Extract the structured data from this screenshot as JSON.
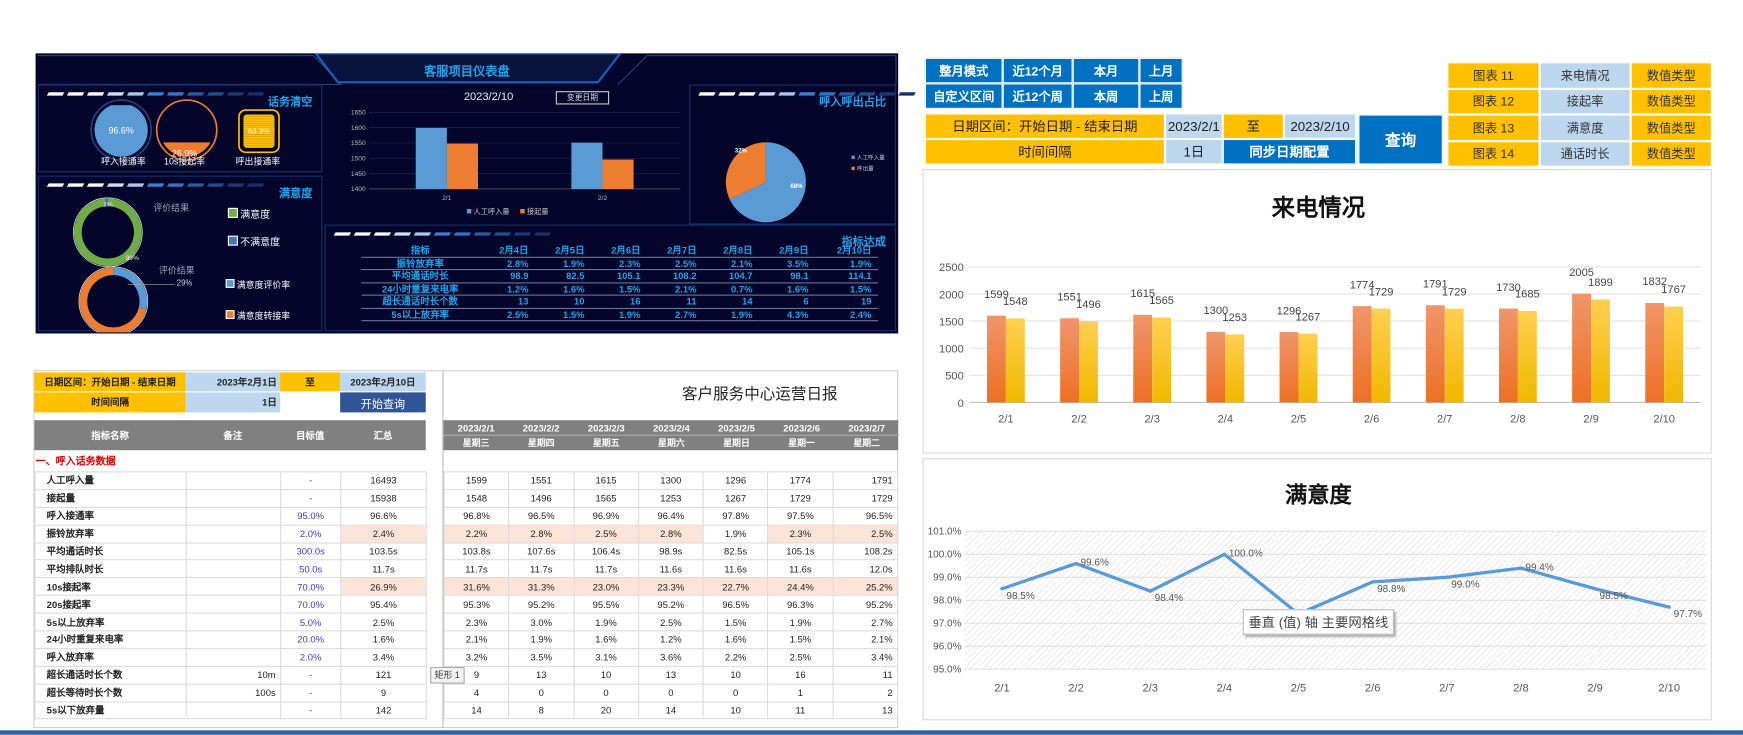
{
  "dashboard": {
    "title": "客服项目仪表盘",
    "panel_traffic": {
      "title": "话务清空",
      "gauges": [
        {
          "label": "呼入接通率",
          "value_text": "96.6%",
          "level": 96.6,
          "color": "#5b9bd5"
        },
        {
          "label": "10s接起率",
          "value_text": "26.9%",
          "level": 26.9,
          "color": "#ed7d31"
        },
        {
          "label": "呼出接通率",
          "value_text": "63.3%",
          "level": 63.3,
          "color": "#ffc000"
        }
      ]
    },
    "panel_satisfaction": {
      "title": "满意度",
      "donut1": {
        "caption": "评价结果",
        "small_label": "1%",
        "big_label": "99%",
        "values": [
          99,
          1
        ],
        "legend": [
          "满意度",
          "不满意度"
        ],
        "colors": [
          "#70ad47",
          "#4472c4"
        ]
      },
      "donut2": {
        "caption": "评价结果",
        "label": "29%",
        "values": [
          29,
          71
        ],
        "legend": [
          "满意度评价率",
          "满意度转接率"
        ],
        "colors": [
          "#5b9bd5",
          "#ed7d31"
        ]
      }
    },
    "center_chart": {
      "date": "2023/2/10",
      "change_date_button": "变更日期"
    },
    "panel_ratio": {
      "title": "呼入呼出占比"
    },
    "panel_kpi": {
      "title": "指标达成",
      "header": [
        "指标",
        "2月4日",
        "2月5日",
        "2月6日",
        "2月7日",
        "2月8日",
        "2月9日",
        "2月10日"
      ],
      "rows": [
        [
          "振铃放弃率",
          "2.8%",
          "1.9%",
          "2.3%",
          "2.5%",
          "2.1%",
          "3.5%",
          "1.9%"
        ],
        [
          "平均通话时长",
          "98.9",
          "82.5",
          "105.1",
          "108.2",
          "104.7",
          "98.1",
          "114.1"
        ],
        [
          "24小时重复来电率",
          "1.2%",
          "1.6%",
          "1.5%",
          "2.1%",
          "0.7%",
          "1.6%",
          "1.5%"
        ],
        [
          "超长通话时长个数",
          "13",
          "10",
          "16",
          "11",
          "14",
          "6",
          "19"
        ],
        [
          "5s以上放弃率",
          "2.5%",
          "1.5%",
          "1.9%",
          "2.7%",
          "1.9%",
          "4.3%",
          "2.4%"
        ]
      ]
    }
  },
  "report": {
    "date_range_label": "日期区间：开始日期 - 结束日期",
    "start_date": "2023年2月1日",
    "to_label": "至",
    "end_date": "2023年2月10日",
    "interval_label": "时间间隔",
    "interval_value": "1日",
    "query_button": "开始查询",
    "title": "客户服务中心运营日报",
    "columns": [
      "指标名称",
      "备注",
      "目标值",
      "汇总"
    ],
    "dates": [
      "2023/2/1",
      "2023/2/2",
      "2023/2/3",
      "2023/2/4",
      "2023/2/5",
      "2023/2/6",
      "2023/2/7"
    ],
    "weekdays": [
      "星期三",
      "星期四",
      "星期五",
      "星期六",
      "星期日",
      "星期一",
      "星期二"
    ],
    "section": "一、呼入话务数据",
    "shape_label": "矩形 1",
    "rows": [
      {
        "name": "人工呼入量",
        "note": "",
        "target": "-",
        "total": "16493",
        "days": [
          "1599",
          "1551",
          "1615",
          "1300",
          "1296",
          "1774",
          "1791"
        ],
        "hl": []
      },
      {
        "name": "接起量",
        "note": "",
        "target": "-",
        "total": "15938",
        "days": [
          "1548",
          "1496",
          "1565",
          "1253",
          "1267",
          "1729",
          "1729"
        ],
        "hl": []
      },
      {
        "name": "呼入接通率",
        "note": "",
        "target": "95.0%",
        "total": "96.6%",
        "days": [
          "96.8%",
          "96.5%",
          "96.9%",
          "96.4%",
          "97.8%",
          "97.5%",
          "96.5%"
        ],
        "hl": []
      },
      {
        "name": "振铃放弃率",
        "note": "",
        "target": "2.0%",
        "total": "2.4%",
        "days": [
          "2.2%",
          "2.8%",
          "2.5%",
          "2.8%",
          "1.9%",
          "2.3%",
          "2.5%"
        ],
        "hl": [
          "total",
          0,
          1,
          2,
          3,
          5,
          6
        ]
      },
      {
        "name": "平均通话时长",
        "note": "",
        "target": "300.0s",
        "total": "103.5s",
        "days": [
          "103.8s",
          "107.6s",
          "106.4s",
          "98.9s",
          "82.5s",
          "105.1s",
          "108.2s"
        ],
        "hl": []
      },
      {
        "name": "平均排队时长",
        "note": "",
        "target": "50.0s",
        "total": "11.7s",
        "days": [
          "11.7s",
          "11.7s",
          "11.7s",
          "11.6s",
          "11.6s",
          "11.6s",
          "12.0s"
        ],
        "hl": []
      },
      {
        "name": "10s接起率",
        "note": "",
        "target": "70.0%",
        "total": "26.9%",
        "days": [
          "31.6%",
          "31.3%",
          "23.0%",
          "23.3%",
          "22.7%",
          "24.4%",
          "25.2%"
        ],
        "hl": [
          "total",
          0,
          1,
          2,
          3,
          4,
          5,
          6
        ]
      },
      {
        "name": "20s接起率",
        "note": "",
        "target": "70.0%",
        "total": "95.4%",
        "days": [
          "95.3%",
          "95.2%",
          "95.5%",
          "95.2%",
          "96.5%",
          "96.3%",
          "95.2%"
        ],
        "hl": []
      },
      {
        "name": "5s以上放弃率",
        "note": "",
        "target": "5.0%",
        "total": "2.5%",
        "days": [
          "2.3%",
          "3.0%",
          "1.9%",
          "2.5%",
          "1.5%",
          "1.9%",
          "2.7%"
        ],
        "hl": []
      },
      {
        "name": "24小时重复来电率",
        "note": "",
        "target": "20.0%",
        "total": "1.6%",
        "days": [
          "2.1%",
          "1.9%",
          "1.6%",
          "1.2%",
          "1.6%",
          "1.5%",
          "2.1%"
        ],
        "hl": []
      },
      {
        "name": "呼入放弃率",
        "note": "",
        "target": "2.0%",
        "total": "3.4%",
        "days": [
          "3.2%",
          "3.5%",
          "3.1%",
          "3.6%",
          "2.2%",
          "2.5%",
          "3.4%"
        ],
        "hl": []
      },
      {
        "name": "超长通话时长个数",
        "note": "10m",
        "target": "-",
        "total": "121",
        "days": [
          "9",
          "13",
          "10",
          "13",
          "10",
          "16",
          "11"
        ],
        "hl": []
      },
      {
        "name": "超长等待时长个数",
        "note": "100s",
        "target": "-",
        "total": "9",
        "days": [
          "4",
          "0",
          "0",
          "0",
          "0",
          "1",
          "2"
        ],
        "hl": []
      },
      {
        "name": "5s以下放弃量",
        "note": "",
        "target": "-",
        "total": "142",
        "days": [
          "14",
          "8",
          "20",
          "14",
          "10",
          "11",
          "13"
        ],
        "hl": []
      }
    ]
  },
  "controls": {
    "mode_buttons": [
      [
        "整月模式",
        "近12个月",
        "本月",
        "上月"
      ],
      [
        "自定义区间",
        "近12个周",
        "本周",
        "上周"
      ]
    ],
    "date_range_label": "日期区间：开始日期 - 结束日期",
    "start_date": "2023/2/1",
    "to_label": "至",
    "end_date": "2023/2/10",
    "interval_label": "时间间隔",
    "interval_value": "1日",
    "sync_button": "同步日期配置",
    "query_button": "查询",
    "chart_config": [
      [
        "图表 11",
        "来电情况",
        "数值类型"
      ],
      [
        "图表 12",
        "接起率",
        "数值类型"
      ],
      [
        "图表 13",
        "满意度",
        "数值类型"
      ],
      [
        "图表 14",
        "通话时长",
        "数值类型"
      ]
    ]
  },
  "tooltip": "垂直 (值) 轴 主要网格线",
  "chart_data": [
    {
      "type": "bar",
      "categories": [
        "2/1",
        "2/2"
      ],
      "ylim": [
        1400,
        1650
      ],
      "yticks": [
        "1400",
        "1450",
        "1500",
        "1550",
        "1600",
        "1650"
      ],
      "series": [
        {
          "name": "人工呼入量",
          "values": [
            1599,
            1551
          ],
          "color": "#5b9bd5"
        },
        {
          "name": "接起量",
          "values": [
            1548,
            1496
          ],
          "color": "#ed7d31"
        }
      ]
    },
    {
      "type": "pie",
      "series": [
        {
          "name": "人工呼入量",
          "value": 68,
          "label": "68%",
          "color": "#5b9bd5"
        },
        {
          "name": "呼出量",
          "value": 32,
          "label": "32%",
          "color": "#ed7d31"
        }
      ]
    },
    {
      "type": "bar",
      "title": "来电情况",
      "categories": [
        "2/1",
        "2/2",
        "2/3",
        "2/4",
        "2/5",
        "2/6",
        "2/7",
        "2/8",
        "2/9",
        "2/10"
      ],
      "ylim": [
        0,
        2500
      ],
      "yticks": [
        "0",
        "500",
        "1000",
        "1500",
        "2000",
        "2500"
      ],
      "grid": true,
      "series": [
        {
          "values": [
            1599,
            1551,
            1615,
            1300,
            1296,
            1774,
            1791,
            1730,
            2005,
            1832
          ],
          "color": "#ed7d31"
        },
        {
          "values": [
            1548,
            1496,
            1565,
            1253,
            1267,
            1729,
            1729,
            1685,
            1899,
            1767
          ],
          "color": "#ffc000"
        }
      ]
    },
    {
      "type": "line",
      "title": "满意度",
      "categories": [
        "2/1",
        "2/2",
        "2/3",
        "2/4",
        "2/5",
        "2/6",
        "2/7",
        "2/8",
        "2/9",
        "2/10"
      ],
      "ylim": [
        95,
        101
      ],
      "yticks": [
        "101.0%",
        "100.0%",
        "99.0%",
        "98.0%",
        "97.0%",
        "96.0%",
        "95.0%"
      ],
      "grid": true,
      "values": [
        98.5,
        99.6,
        98.4,
        100.0,
        97.4,
        98.8,
        99.0,
        99.4,
        98.5,
        97.7
      ],
      "labels": [
        "98.5%",
        "99.6%",
        "98.4%",
        "100.0%",
        "",
        "98.8%",
        "99.0%",
        "99.4%",
        "98.5%",
        "97.7%"
      ],
      "color": "#5b9bd5"
    }
  ]
}
